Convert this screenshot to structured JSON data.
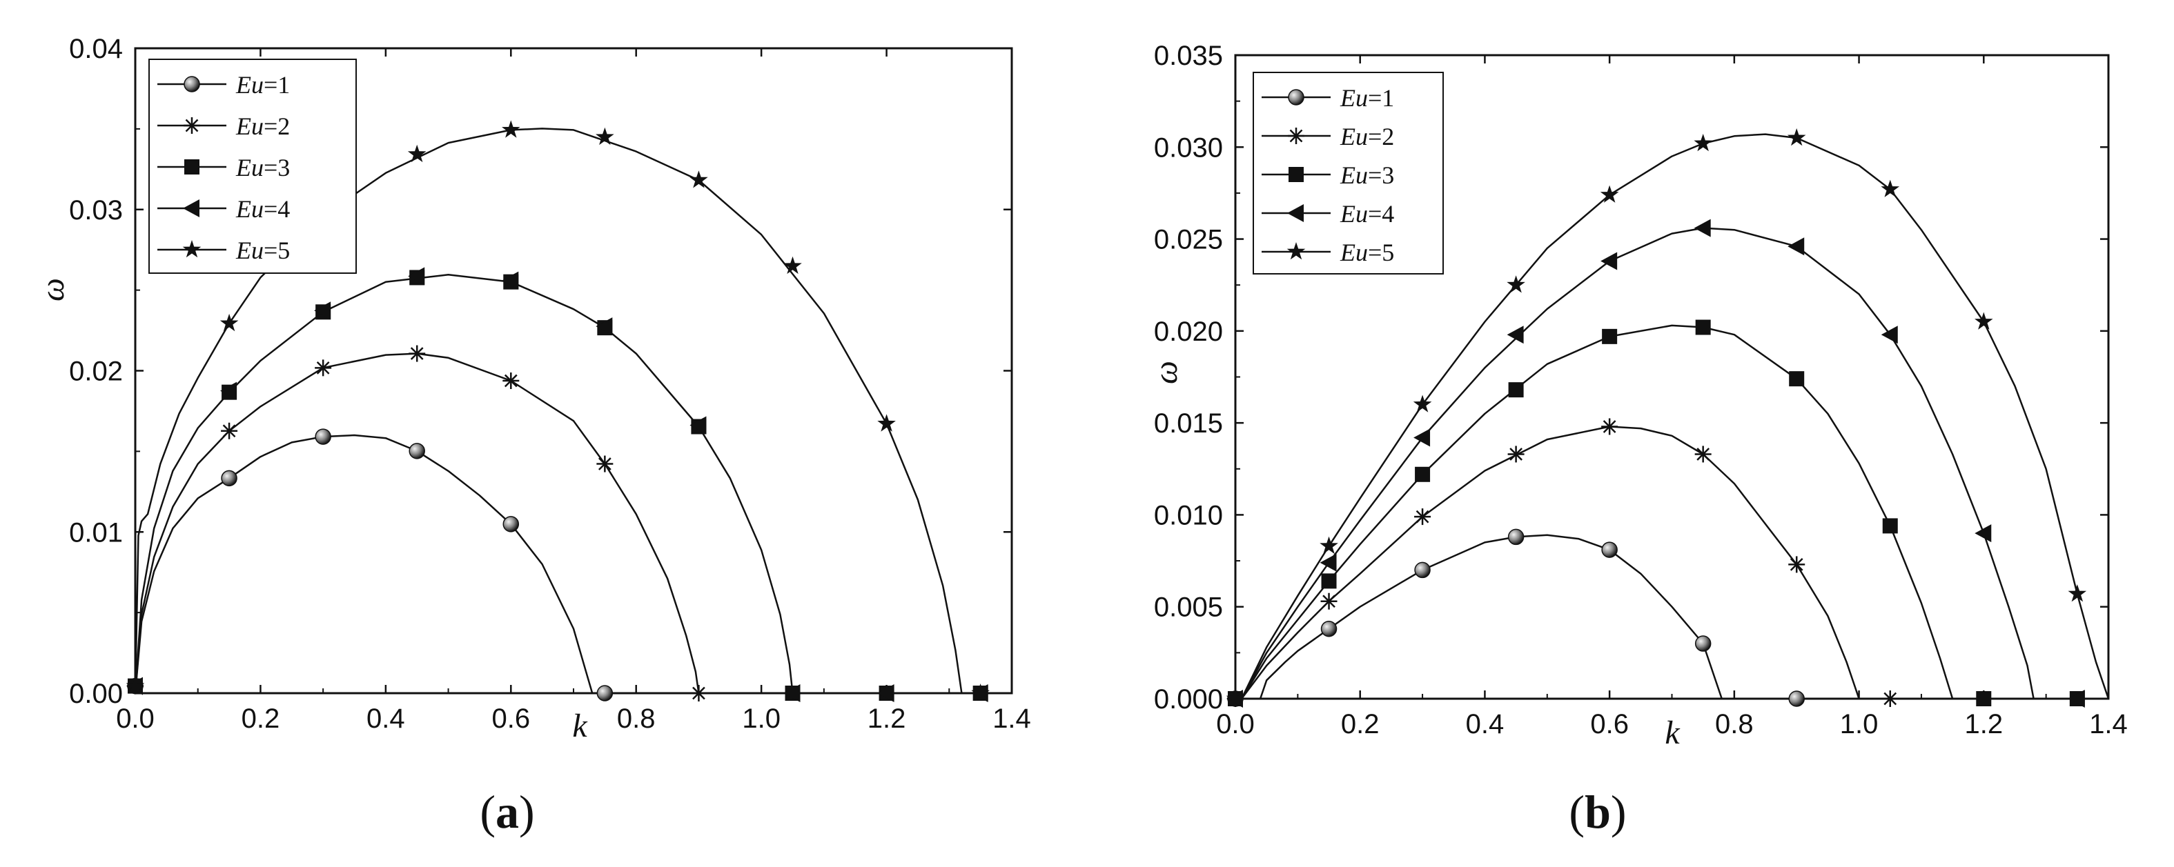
{
  "chart_data": [
    {
      "type": "line",
      "panel_label": "(a)",
      "panel_letter": "a",
      "xlabel": "k",
      "ylabel": "ω",
      "xlim": [
        0,
        1.4
      ],
      "ylim": [
        0,
        0.045
      ],
      "x_ticks": [
        "0.0",
        "0.2",
        "0.4",
        "0.6",
        "0.8",
        "1.0",
        "1.2",
        "1.4"
      ],
      "y_ticks": [
        "0.00",
        "0.01",
        "0.02",
        "0.03",
        "0.04"
      ],
      "legend_position": "top-left",
      "series": [
        {
          "name": "Eu=1",
          "marker": "circle",
          "x": [
            0,
            0.15,
            0.3,
            0.45,
            0.6,
            0.75
          ],
          "y": [
            0.0005,
            0.015,
            0.0179,
            0.0169,
            0.0118,
            0.0
          ]
        },
        {
          "name": "Eu=2",
          "marker": "asterisk",
          "x": [
            0,
            0.15,
            0.3,
            0.45,
            0.6,
            0.75,
            0.9
          ],
          "y": [
            0.0005,
            0.0183,
            0.0227,
            0.0237,
            0.0218,
            0.016,
            0.0
          ]
        },
        {
          "name": "Eu=3",
          "marker": "square",
          "x": [
            0,
            0.15,
            0.3,
            0.45,
            0.6,
            0.75,
            0.9,
            1.05,
            1.2,
            1.35
          ],
          "y": [
            0.0005,
            0.021,
            0.0266,
            0.029,
            0.0287,
            0.0255,
            0.0186,
            0.0,
            0.0,
            0.0
          ]
        },
        {
          "name": "Eu=4",
          "marker": "triangle-left",
          "x": [
            0,
            0.15,
            0.3,
            0.45,
            0.6,
            0.75,
            0.9,
            1.05,
            1.2,
            1.35
          ],
          "y": [
            0.0005,
            0.0211,
            0.0267,
            0.0291,
            0.0288,
            0.0256,
            0.0187,
            0.0,
            0.0,
            0.0
          ]
        },
        {
          "name": "Eu=5",
          "marker": "star",
          "x": [
            0,
            0.15,
            0.3,
            0.45,
            0.6,
            0.75,
            0.9,
            1.05,
            1.2,
            1.35
          ],
          "y": [
            0.0005,
            0.0258,
            0.0333,
            0.0376,
            0.0393,
            0.0388,
            0.0358,
            0.0298,
            0.0188,
            0.0
          ]
        }
      ],
      "curves": [
        {
          "x": [
            0,
            0.01,
            0.03,
            0.06,
            0.1,
            0.15,
            0.2,
            0.25,
            0.3,
            0.35,
            0.4,
            0.45,
            0.5,
            0.55,
            0.6,
            0.65,
            0.7,
            0.72,
            0.73
          ],
          "y": [
            0.0,
            0.005,
            0.0085,
            0.0115,
            0.0136,
            0.015,
            0.0165,
            0.0175,
            0.0179,
            0.018,
            0.0178,
            0.0169,
            0.0155,
            0.0138,
            0.0118,
            0.009,
            0.0045,
            0.0015,
            0.0
          ]
        },
        {
          "x": [
            0,
            0.01,
            0.03,
            0.06,
            0.1,
            0.15,
            0.2,
            0.3,
            0.4,
            0.45,
            0.5,
            0.6,
            0.7,
            0.75,
            0.8,
            0.85,
            0.88,
            0.895,
            0.9
          ],
          "y": [
            0.0,
            0.0055,
            0.0095,
            0.013,
            0.016,
            0.0183,
            0.02,
            0.0227,
            0.0236,
            0.0237,
            0.0234,
            0.0218,
            0.019,
            0.016,
            0.0125,
            0.008,
            0.004,
            0.0015,
            0.0
          ]
        },
        {
          "x": [
            0,
            0.01,
            0.03,
            0.06,
            0.1,
            0.15,
            0.2,
            0.3,
            0.4,
            0.5,
            0.6,
            0.7,
            0.75,
            0.8,
            0.9,
            0.95,
            1.0,
            1.03,
            1.045,
            1.05
          ],
          "y": [
            0.0,
            0.0065,
            0.0115,
            0.0155,
            0.0185,
            0.021,
            0.0232,
            0.0266,
            0.0287,
            0.0292,
            0.0287,
            0.0268,
            0.0255,
            0.0237,
            0.0186,
            0.015,
            0.01,
            0.0055,
            0.002,
            0.0
          ]
        },
        {
          "x": [
            0,
            0.005,
            0.01,
            0.02,
            0.04,
            0.07,
            0.1,
            0.15,
            0.2,
            0.3,
            0.4,
            0.5,
            0.6,
            0.65,
            0.7,
            0.8,
            0.9,
            1.0,
            1.1,
            1.2,
            1.25,
            1.29,
            1.31,
            1.32
          ],
          "y": [
            0.0,
            0.011,
            0.012,
            0.0125,
            0.016,
            0.0195,
            0.022,
            0.0258,
            0.029,
            0.0333,
            0.0363,
            0.0384,
            0.0393,
            0.0394,
            0.0393,
            0.0378,
            0.0358,
            0.032,
            0.0265,
            0.0188,
            0.0135,
            0.0075,
            0.003,
            0.0
          ]
        }
      ]
    },
    {
      "type": "line",
      "panel_label": "(b)",
      "panel_letter": "b",
      "xlabel": "k",
      "ylabel": "ω",
      "xlim": [
        0,
        1.4
      ],
      "ylim": [
        0,
        0.035
      ],
      "x_ticks": [
        "0.0",
        "0.2",
        "0.4",
        "0.6",
        "0.8",
        "1.0",
        "1.2",
        "1.4"
      ],
      "y_ticks": [
        "0.000",
        "0.005",
        "0.010",
        "0.015",
        "0.020",
        "0.025",
        "0.030",
        "0.035"
      ],
      "legend_position": "top-left",
      "series": [
        {
          "name": "Eu=1",
          "marker": "circle",
          "x": [
            0,
            0.15,
            0.3,
            0.45,
            0.6,
            0.75,
            0.9
          ],
          "y": [
            0.0,
            0.0038,
            0.007,
            0.0088,
            0.0081,
            0.003,
            0.0
          ]
        },
        {
          "name": "Eu=2",
          "marker": "asterisk",
          "x": [
            0,
            0.15,
            0.3,
            0.45,
            0.6,
            0.75,
            0.9,
            1.05
          ],
          "y": [
            0.0,
            0.0053,
            0.0099,
            0.0133,
            0.0148,
            0.0133,
            0.0073,
            0.0
          ]
        },
        {
          "name": "Eu=3",
          "marker": "square",
          "x": [
            0,
            0.15,
            0.3,
            0.45,
            0.6,
            0.75,
            0.9,
            1.05,
            1.2,
            1.35
          ],
          "y": [
            0.0,
            0.0064,
            0.0122,
            0.0168,
            0.0197,
            0.0202,
            0.0174,
            0.0094,
            0.0,
            0.0
          ]
        },
        {
          "name": "Eu=4",
          "marker": "triangle-left",
          "x": [
            0,
            0.15,
            0.3,
            0.45,
            0.6,
            0.75,
            0.9,
            1.05,
            1.2,
            1.35
          ],
          "y": [
            0.0,
            0.0074,
            0.0142,
            0.0198,
            0.0238,
            0.0256,
            0.0246,
            0.0198,
            0.009,
            0.0
          ]
        },
        {
          "name": "Eu=5",
          "marker": "star",
          "x": [
            0,
            0.15,
            0.3,
            0.45,
            0.6,
            0.75,
            0.9,
            1.05,
            1.2,
            1.35
          ],
          "y": [
            0.0,
            0.0083,
            0.016,
            0.0225,
            0.0274,
            0.0302,
            0.0305,
            0.0277,
            0.0205,
            0.0057
          ]
        }
      ],
      "curves": [
        {
          "x": [
            0.04,
            0.05,
            0.08,
            0.1,
            0.15,
            0.2,
            0.3,
            0.4,
            0.45,
            0.5,
            0.55,
            0.6,
            0.65,
            0.7,
            0.75,
            0.78
          ],
          "y": [
            0.0,
            0.001,
            0.002,
            0.0026,
            0.0038,
            0.005,
            0.007,
            0.0085,
            0.0088,
            0.0089,
            0.0087,
            0.0081,
            0.0068,
            0.005,
            0.003,
            0.0
          ]
        },
        {
          "x": [
            0.01,
            0.05,
            0.1,
            0.15,
            0.2,
            0.3,
            0.4,
            0.5,
            0.6,
            0.65,
            0.7,
            0.75,
            0.8,
            0.85,
            0.9,
            0.95,
            0.98,
            1.0
          ],
          "y": [
            0.0,
            0.0018,
            0.0036,
            0.0053,
            0.0068,
            0.0099,
            0.0124,
            0.0141,
            0.0148,
            0.0147,
            0.0143,
            0.0133,
            0.0117,
            0.0095,
            0.0073,
            0.0045,
            0.002,
            0.0
          ]
        },
        {
          "x": [
            0.01,
            0.05,
            0.1,
            0.15,
            0.2,
            0.3,
            0.4,
            0.5,
            0.6,
            0.7,
            0.75,
            0.8,
            0.9,
            0.95,
            1.0,
            1.05,
            1.1,
            1.13,
            1.15
          ],
          "y": [
            0.0,
            0.0022,
            0.0043,
            0.0064,
            0.0084,
            0.0122,
            0.0155,
            0.0182,
            0.0197,
            0.0203,
            0.0202,
            0.0198,
            0.0174,
            0.0155,
            0.0128,
            0.0094,
            0.0052,
            0.0022,
            0.0
          ]
        },
        {
          "x": [
            0.01,
            0.05,
            0.1,
            0.15,
            0.2,
            0.3,
            0.4,
            0.5,
            0.6,
            0.7,
            0.75,
            0.8,
            0.9,
            1.0,
            1.05,
            1.1,
            1.15,
            1.2,
            1.24,
            1.27,
            1.28
          ],
          "y": [
            0.0,
            0.0025,
            0.005,
            0.0074,
            0.0097,
            0.0142,
            0.018,
            0.0212,
            0.0238,
            0.0253,
            0.0256,
            0.0255,
            0.0246,
            0.022,
            0.0198,
            0.017,
            0.0133,
            0.009,
            0.005,
            0.0018,
            0.0
          ]
        },
        {
          "x": [
            0.01,
            0.05,
            0.1,
            0.15,
            0.2,
            0.3,
            0.4,
            0.5,
            0.6,
            0.7,
            0.75,
            0.8,
            0.85,
            0.9,
            1.0,
            1.05,
            1.1,
            1.2,
            1.25,
            1.3,
            1.35,
            1.38,
            1.4
          ],
          "y": [
            0.0,
            0.0028,
            0.0056,
            0.0083,
            0.0109,
            0.016,
            0.0205,
            0.0245,
            0.0274,
            0.0295,
            0.0302,
            0.0306,
            0.0307,
            0.0305,
            0.029,
            0.0277,
            0.0255,
            0.0205,
            0.017,
            0.0125,
            0.0057,
            0.002,
            0.0
          ]
        }
      ]
    }
  ]
}
